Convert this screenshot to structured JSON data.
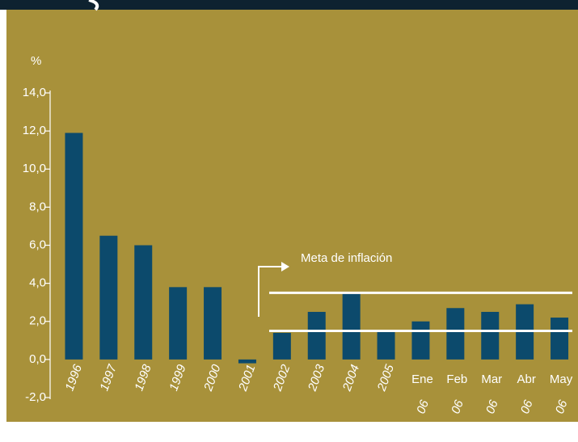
{
  "chart_data": {
    "type": "bar",
    "y_axis_label": "%",
    "categories": [
      "1996",
      "1997",
      "1998",
      "1999",
      "2000",
      "2001",
      "2002",
      "2003",
      "2004",
      "2005",
      "Ene 06",
      "Feb 06",
      "Mar 06",
      "Abr 06",
      "May 06"
    ],
    "values": [
      11.9,
      6.5,
      6.0,
      3.8,
      3.8,
      -0.2,
      1.4,
      2.5,
      3.5,
      1.5,
      2.0,
      2.7,
      2.5,
      2.9,
      2.2
    ],
    "color": "#0c4a6c",
    "ylim": [
      -2,
      14
    ],
    "yticks": [
      {
        "value": -2,
        "label": "-2,0"
      },
      {
        "value": 0,
        "label": "0,0"
      },
      {
        "value": 2,
        "label": "2,0"
      },
      {
        "value": 4,
        "label": "4,0"
      },
      {
        "value": 6,
        "label": "6,0"
      },
      {
        "value": 8,
        "label": "8,0"
      },
      {
        "value": 10,
        "label": "10,0"
      },
      {
        "value": 12,
        "label": "12,0"
      },
      {
        "value": 14,
        "label": "14,0"
      }
    ],
    "target_band": [
      1.5,
      3.5
    ],
    "annotation": "Meta de inflación"
  }
}
